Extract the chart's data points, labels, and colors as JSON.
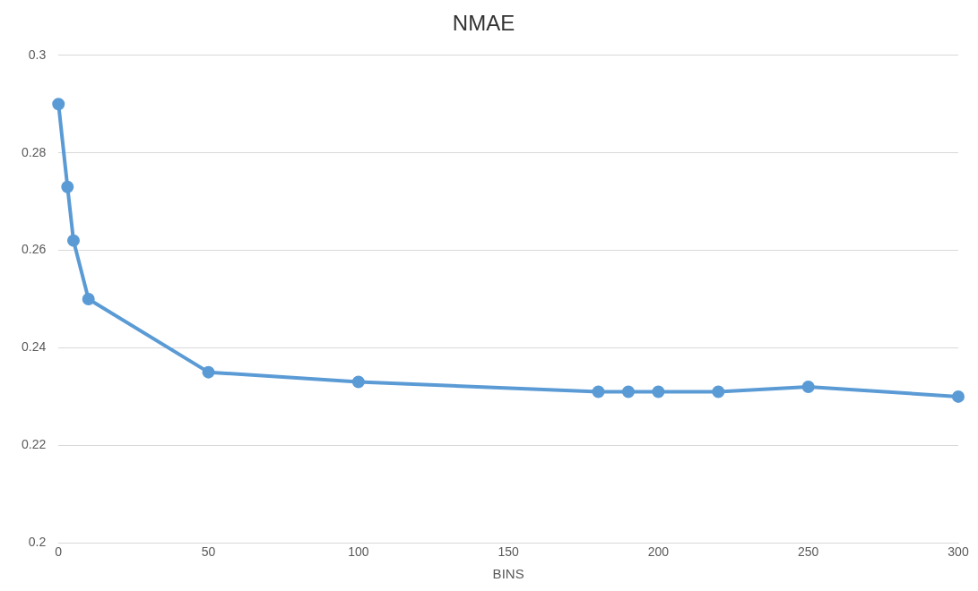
{
  "chart_data": {
    "type": "line",
    "title": "NMAE",
    "xlabel": "BINS",
    "series": [
      {
        "color": "#5b9bd5",
        "x": [
          0,
          3,
          5,
          10,
          50,
          100,
          180,
          190,
          200,
          220,
          250,
          300
        ],
        "values": [
          0.29,
          0.273,
          0.262,
          0.25,
          0.235,
          0.233,
          0.231,
          0.231,
          0.231,
          0.231,
          0.232,
          0.23
        ]
      }
    ],
    "xlim": [
      0,
      300
    ],
    "xticks": [
      0,
      50,
      100,
      150,
      200,
      250,
      300
    ],
    "ylim": [
      0.2,
      0.3
    ],
    "yticks": [
      0.2,
      0.22,
      0.24,
      0.26,
      0.28,
      0.3
    ],
    "grid": "y",
    "legend": false,
    "marker": "circle",
    "line_style": "solid"
  }
}
